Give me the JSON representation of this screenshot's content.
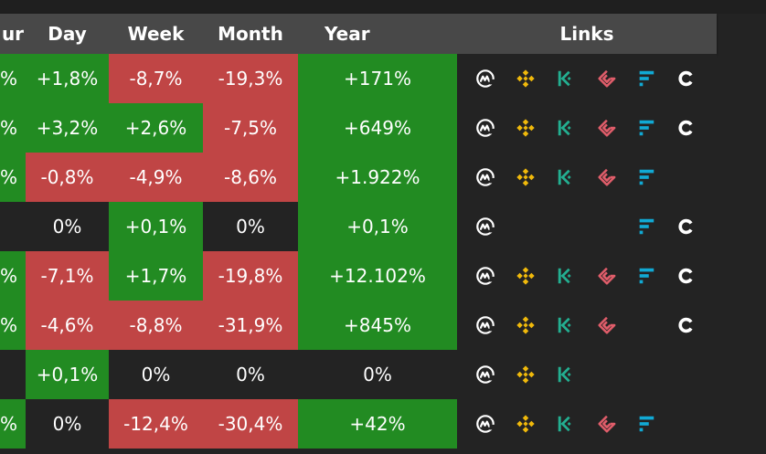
{
  "columns": {
    "hour": "ur",
    "day": "Day",
    "week": "Week",
    "month": "Month",
    "year": "Year",
    "links": "Links"
  },
  "colors": {
    "positive": "#228b22",
    "negative": "#c04545",
    "neutral": "#232323",
    "coinmarketcap": "#ffffff",
    "binance": "#f0b90b",
    "kucoin": "#23af91",
    "gate": "#e05d6a",
    "ftx": "#11a9d4",
    "coinbase": "#ffffff"
  },
  "rows": [
    {
      "hour": "%",
      "day": "+1,8%",
      "week": "-8,7%",
      "month": "-19,3%",
      "year": "+171%",
      "hour_state": "positive",
      "day_state": "positive",
      "week_state": "negative",
      "month_state": "negative",
      "year_state": "positive",
      "links": [
        "coinmarketcap-icon",
        "binance-icon",
        "kucoin-icon",
        "gate-icon",
        "ftx-icon",
        "coinbase-icon"
      ]
    },
    {
      "hour": "%",
      "day": "+3,2%",
      "week": "+2,6%",
      "month": "-7,5%",
      "year": "+649%",
      "hour_state": "positive",
      "day_state": "positive",
      "week_state": "positive",
      "month_state": "negative",
      "year_state": "positive",
      "links": [
        "coinmarketcap-icon",
        "binance-icon",
        "kucoin-icon",
        "gate-icon",
        "ftx-icon",
        "coinbase-icon"
      ]
    },
    {
      "hour": "%",
      "day": "-0,8%",
      "week": "-4,9%",
      "month": "-8,6%",
      "year": "+1.922%",
      "hour_state": "positive",
      "day_state": "negative",
      "week_state": "negative",
      "month_state": "negative",
      "year_state": "positive",
      "links": [
        "coinmarketcap-icon",
        "binance-icon",
        "kucoin-icon",
        "gate-icon",
        "ftx-icon"
      ]
    },
    {
      "hour": "",
      "day": "0%",
      "week": "+0,1%",
      "month": "0%",
      "year": "+0,1%",
      "hour_state": "neutral",
      "day_state": "neutral",
      "week_state": "positive",
      "month_state": "neutral",
      "year_state": "positive",
      "links": [
        "coinmarketcap-icon",
        "ftx-icon",
        "coinbase-icon"
      ]
    },
    {
      "hour": "%",
      "day": "-7,1%",
      "week": "+1,7%",
      "month": "-19,8%",
      "year": "+12.102%",
      "hour_state": "positive",
      "day_state": "negative",
      "week_state": "positive",
      "month_state": "negative",
      "year_state": "positive",
      "links": [
        "coinmarketcap-icon",
        "binance-icon",
        "kucoin-icon",
        "gate-icon",
        "ftx-icon",
        "coinbase-icon"
      ]
    },
    {
      "hour": "%",
      "day": "-4,6%",
      "week": "-8,8%",
      "month": "-31,9%",
      "year": "+845%",
      "hour_state": "positive",
      "day_state": "negative",
      "week_state": "negative",
      "month_state": "negative",
      "year_state": "positive",
      "links": [
        "coinmarketcap-icon",
        "binance-icon",
        "kucoin-icon",
        "gate-icon",
        "coinbase-icon"
      ]
    },
    {
      "hour": "",
      "day": "+0,1%",
      "week": "0%",
      "month": "0%",
      "year": "0%",
      "hour_state": "neutral",
      "day_state": "positive",
      "week_state": "neutral",
      "month_state": "neutral",
      "year_state": "neutral",
      "links": [
        "coinmarketcap-icon",
        "binance-icon",
        "kucoin-icon"
      ]
    },
    {
      "hour": "%",
      "day": "0%",
      "week": "-12,4%",
      "month": "-30,4%",
      "year": "+42%",
      "hour_state": "positive",
      "day_state": "neutral",
      "week_state": "negative",
      "month_state": "negative",
      "year_state": "positive",
      "links": [
        "coinmarketcap-icon",
        "binance-icon",
        "kucoin-icon",
        "gate-icon",
        "ftx-icon"
      ]
    }
  ]
}
